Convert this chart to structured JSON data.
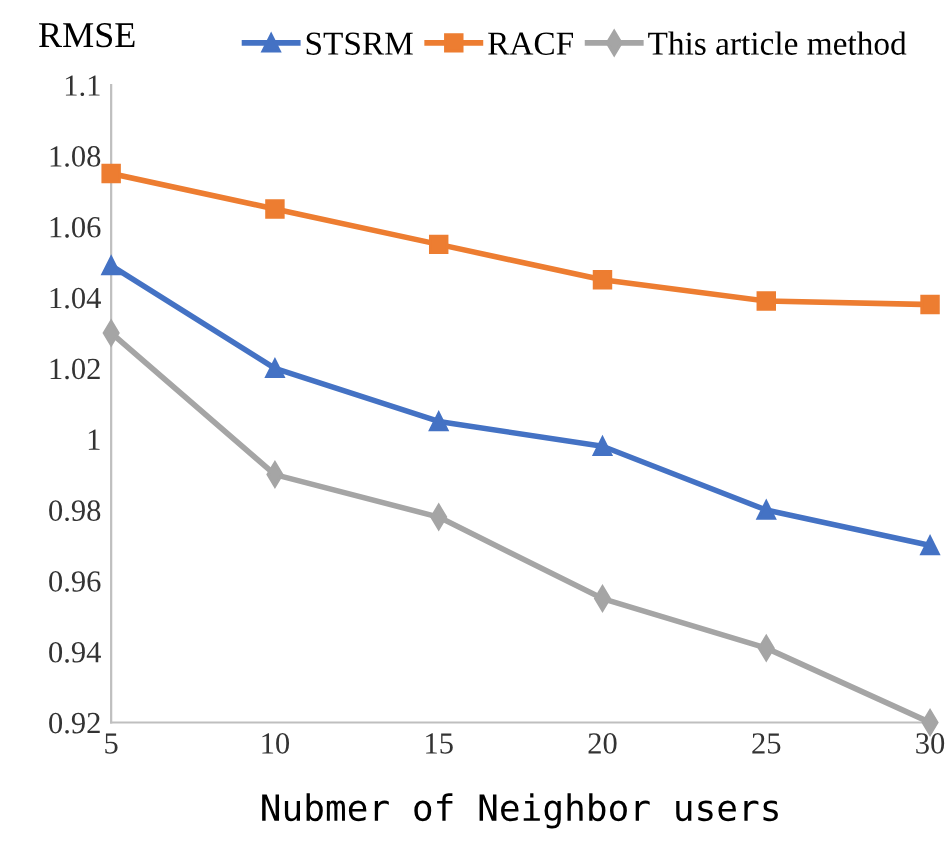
{
  "chart_data": {
    "type": "line",
    "ylabel": "RMSE",
    "xlabel": "Nubmer of Neighbor users",
    "x": [
      5,
      10,
      15,
      20,
      25,
      30
    ],
    "series": [
      {
        "name": "STSRM",
        "color": "#4472c4",
        "marker": "triangle",
        "values": [
          1.049,
          1.02,
          1.005,
          0.998,
          0.98,
          0.97
        ]
      },
      {
        "name": "RACF",
        "color": "#ed7d31",
        "marker": "square",
        "values": [
          1.075,
          1.065,
          1.055,
          1.045,
          1.039,
          1.038
        ]
      },
      {
        "name": "This article method",
        "color": "#a5a5a5",
        "marker": "diamond",
        "values": [
          1.03,
          0.99,
          0.978,
          0.955,
          0.941,
          0.92
        ]
      }
    ],
    "xlim": [
      5,
      30
    ],
    "xticks": [
      5,
      10,
      15,
      20,
      25,
      30
    ],
    "ylim": [
      0.92,
      1.1
    ],
    "yticks": [
      0.92,
      0.94,
      0.96,
      0.98,
      {
        "value": 1.0,
        "label": "1"
      },
      1.02,
      1.04,
      1.06,
      1.08,
      {
        "value": 1.1,
        "label": "1.1"
      }
    ],
    "grid": false,
    "legend": "top",
    "line_style": "solid"
  }
}
